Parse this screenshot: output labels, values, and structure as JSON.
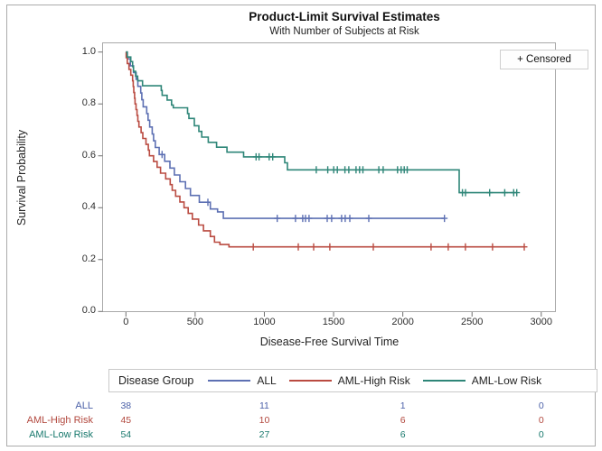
{
  "chart_data": {
    "type": "line",
    "chart_kind": "kaplan-meier-step-plot",
    "title": "Product-Limit Survival Estimates",
    "subtitle": "With Number of Subjects at Risk",
    "xlabel": "Disease-Free Survival Time",
    "ylabel": "Survival Probability",
    "xlim": [
      0,
      3000
    ],
    "ylim": [
      0,
      1
    ],
    "xticks": [
      "0",
      "500",
      "1000",
      "1500",
      "2000",
      "2500",
      "3000"
    ],
    "yticks": [
      "0.0",
      "0.2",
      "0.4",
      "0.6",
      "0.8",
      "1.0"
    ],
    "grid": false,
    "legend_position": "bottom",
    "censored_marker_label": "+ Censored",
    "legend_title": "Disease Group",
    "series": [
      {
        "name": "ALL",
        "color": "#5D70B3",
        "steps": [
          [
            0,
            1.0
          ],
          [
            10,
            0.974
          ],
          [
            32,
            0.947
          ],
          [
            55,
            0.921
          ],
          [
            74,
            0.895
          ],
          [
            86,
            0.868
          ],
          [
            107,
            0.842
          ],
          [
            115,
            0.816
          ],
          [
            125,
            0.789
          ],
          [
            150,
            0.763
          ],
          [
            160,
            0.737
          ],
          [
            172,
            0.711
          ],
          [
            190,
            0.684
          ],
          [
            200,
            0.658
          ],
          [
            212,
            0.632
          ],
          [
            240,
            0.605
          ],
          [
            280,
            0.579
          ],
          [
            318,
            0.553
          ],
          [
            350,
            0.526
          ],
          [
            390,
            0.5
          ],
          [
            430,
            0.474
          ],
          [
            466,
            0.447
          ],
          [
            530,
            0.421
          ],
          [
            610,
            0.395
          ],
          [
            662,
            0.384
          ],
          [
            704,
            0.359
          ],
          [
            2301,
            0.359
          ]
        ],
        "censors": [
          [
            261,
            0.605
          ],
          [
            592,
            0.421
          ],
          [
            1093,
            0.359
          ],
          [
            1225,
            0.359
          ],
          [
            1277,
            0.359
          ],
          [
            1297,
            0.359
          ],
          [
            1323,
            0.359
          ],
          [
            1454,
            0.359
          ],
          [
            1486,
            0.359
          ],
          [
            1558,
            0.359
          ],
          [
            1584,
            0.359
          ],
          [
            1617,
            0.359
          ],
          [
            1754,
            0.359
          ],
          [
            2301,
            0.359
          ]
        ]
      },
      {
        "name": "AML-High Risk",
        "color": "#BA4B41",
        "steps": [
          [
            0,
            1.0
          ],
          [
            2,
            0.978
          ],
          [
            10,
            0.956
          ],
          [
            22,
            0.933
          ],
          [
            35,
            0.911
          ],
          [
            48,
            0.889
          ],
          [
            53,
            0.867
          ],
          [
            57,
            0.844
          ],
          [
            63,
            0.822
          ],
          [
            66,
            0.8
          ],
          [
            73,
            0.778
          ],
          [
            80,
            0.756
          ],
          [
            86,
            0.733
          ],
          [
            94,
            0.711
          ],
          [
            110,
            0.689
          ],
          [
            122,
            0.667
          ],
          [
            145,
            0.644
          ],
          [
            162,
            0.622
          ],
          [
            170,
            0.6
          ],
          [
            200,
            0.578
          ],
          [
            225,
            0.556
          ],
          [
            250,
            0.533
          ],
          [
            287,
            0.511
          ],
          [
            320,
            0.489
          ],
          [
            334,
            0.467
          ],
          [
            359,
            0.444
          ],
          [
            390,
            0.422
          ],
          [
            420,
            0.4
          ],
          [
            450,
            0.378
          ],
          [
            480,
            0.356
          ],
          [
            525,
            0.333
          ],
          [
            560,
            0.311
          ],
          [
            610,
            0.289
          ],
          [
            640,
            0.267
          ],
          [
            679,
            0.258
          ],
          [
            744,
            0.249
          ],
          [
            2877,
            0.249
          ]
        ],
        "censors": [
          [
            920,
            0.249
          ],
          [
            1245,
            0.249
          ],
          [
            1356,
            0.249
          ],
          [
            1473,
            0.249
          ],
          [
            1787,
            0.249
          ],
          [
            2204,
            0.249
          ],
          [
            2328,
            0.249
          ],
          [
            2452,
            0.249
          ],
          [
            2648,
            0.249
          ],
          [
            2877,
            0.249
          ]
        ]
      },
      {
        "name": "AML-Low Risk",
        "color": "#2E8678",
        "steps": [
          [
            0,
            1.0
          ],
          [
            10,
            0.981
          ],
          [
            35,
            0.963
          ],
          [
            48,
            0.944
          ],
          [
            55,
            0.926
          ],
          [
            70,
            0.907
          ],
          [
            85,
            0.889
          ],
          [
            120,
            0.87
          ],
          [
            255,
            0.852
          ],
          [
            262,
            0.833
          ],
          [
            298,
            0.815
          ],
          [
            330,
            0.796
          ],
          [
            342,
            0.785
          ],
          [
            445,
            0.763
          ],
          [
            455,
            0.744
          ],
          [
            494,
            0.716
          ],
          [
            527,
            0.694
          ],
          [
            548,
            0.672
          ],
          [
            595,
            0.652
          ],
          [
            655,
            0.633
          ],
          [
            730,
            0.614
          ],
          [
            850,
            0.596
          ],
          [
            1147,
            0.573
          ],
          [
            1167,
            0.546
          ],
          [
            2407,
            0.458
          ],
          [
            2823,
            0.458
          ]
        ],
        "censors": [
          [
            940,
            0.596
          ],
          [
            962,
            0.596
          ],
          [
            1035,
            0.596
          ],
          [
            1060,
            0.596
          ],
          [
            1375,
            0.546
          ],
          [
            1458,
            0.546
          ],
          [
            1501,
            0.546
          ],
          [
            1527,
            0.546
          ],
          [
            1582,
            0.546
          ],
          [
            1610,
            0.546
          ],
          [
            1662,
            0.546
          ],
          [
            1688,
            0.546
          ],
          [
            1712,
            0.546
          ],
          [
            1827,
            0.546
          ],
          [
            1858,
            0.546
          ],
          [
            1962,
            0.546
          ],
          [
            1988,
            0.546
          ],
          [
            2010,
            0.546
          ],
          [
            2032,
            0.546
          ],
          [
            2431,
            0.458
          ],
          [
            2453,
            0.458
          ],
          [
            2627,
            0.458
          ],
          [
            2736,
            0.458
          ],
          [
            2801,
            0.458
          ],
          [
            2823,
            0.458
          ]
        ]
      }
    ],
    "at_risk_times": [
      0,
      1000,
      2000,
      3000
    ],
    "at_risk_rows": [
      {
        "label": "ALL",
        "color": "#4C61A8",
        "values": [
          "38",
          "11",
          "1",
          "0"
        ]
      },
      {
        "label": "AML-High Risk",
        "color": "#B2483E",
        "values": [
          "45",
          "10",
          "6",
          "0"
        ]
      },
      {
        "label": "AML-Low Risk",
        "color": "#17786C",
        "values": [
          "54",
          "27",
          "6",
          "0"
        ]
      }
    ]
  }
}
